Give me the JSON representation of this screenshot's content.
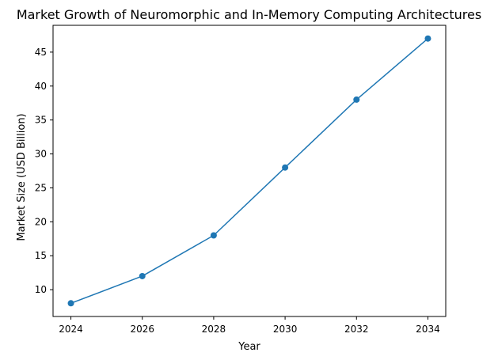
{
  "chart_data": {
    "type": "line",
    "title": "Market Growth of Neuromorphic and In-Memory Computing Architectures",
    "xlabel": "Year",
    "ylabel": "Market Size (USD Billion)",
    "x": [
      2024,
      2026,
      2028,
      2030,
      2032,
      2034
    ],
    "series": [
      {
        "values": [
          8,
          12,
          18,
          28,
          38,
          47
        ],
        "color": "#1f77b4",
        "marker": "circle"
      }
    ],
    "xlim": [
      2023.5,
      2034.5
    ],
    "ylim": [
      6.05,
      48.95
    ],
    "xticks": [
      2024,
      2026,
      2028,
      2030,
      2032,
      2034
    ],
    "yticks": [
      10,
      15,
      20,
      25,
      30,
      35,
      40,
      45
    ],
    "grid": false,
    "legend": "none"
  }
}
